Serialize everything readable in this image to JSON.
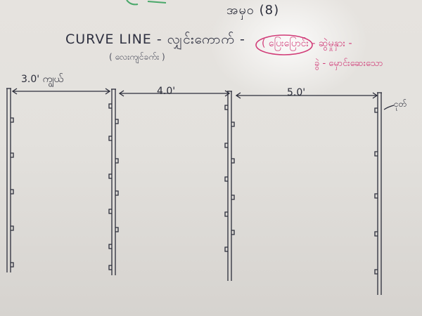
{
  "whiteboard": {
    "heading": "အမှ၀ (8)",
    "curve_title": "CURVE LINE - လျှင်းကောက် -",
    "curve_subtitle": "( လေးကျင်ခက်း )",
    "pink_note_line1": "( ပြေးပြောင်း - ဆွဲမှုနှား -",
    "pink_note_line2": "ခွဲ - မှောင်းဆေးသော",
    "spacings": {
      "first": "3.0' ကျွယ်",
      "second": "4.0'",
      "third": "5.0'"
    },
    "pole_note": "ငုတ်",
    "colors": {
      "board": "#e3e1dd",
      "ink": "#2b2d3a",
      "pink_marker": "#d13c78"
    }
  }
}
